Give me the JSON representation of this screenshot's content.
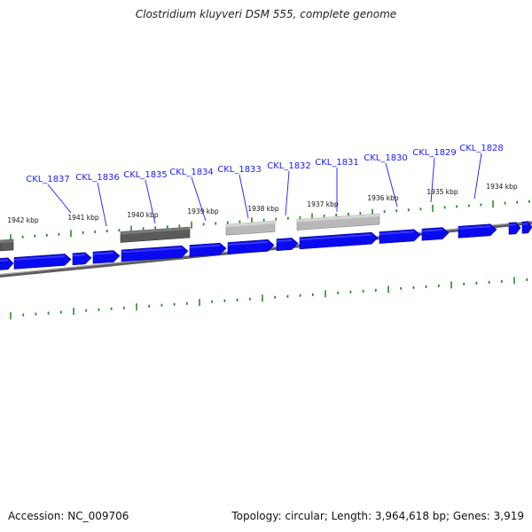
{
  "title": "Clostridium kluyveri DSM 555, complete genome",
  "footer": {
    "accession": "Accession: NC_009706",
    "summary": "Topology: circular; Length: 3,964,618 bp; Genes: 3,919"
  },
  "colors": {
    "gene": "#0a0af0",
    "backbone": "#808080",
    "tick": "#2a8a2a",
    "label": "#1a1aff",
    "feature_dark": "#5a5a5a",
    "feature_light": "#b8b8b8"
  },
  "gene_labels": [
    "CKL_1837",
    "CKL_1836",
    "CKL_1835",
    "CKL_1834",
    "CKL_1833",
    "CKL_1832",
    "CKL_1831",
    "CKL_1830",
    "CKL_1829",
    "CKL_1828"
  ],
  "kbp_labels": [
    "1942 kbp",
    "1941 kbp",
    "1940 kbp",
    "1939 kbp",
    "1938 kbp",
    "1937 kbp",
    "1936 kbp",
    "1935 kbp",
    "1934 kbp"
  ]
}
